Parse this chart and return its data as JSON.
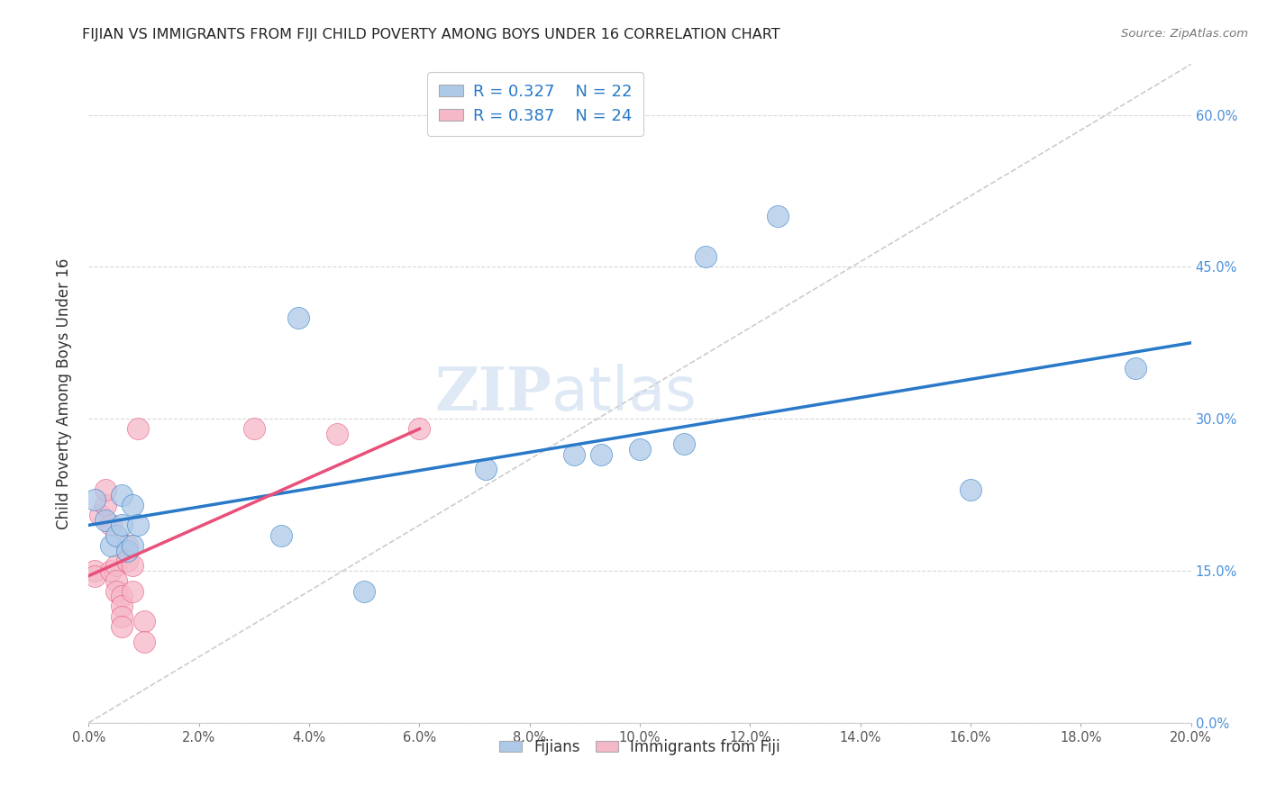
{
  "title": "FIJIAN VS IMMIGRANTS FROM FIJI CHILD POVERTY AMONG BOYS UNDER 16 CORRELATION CHART",
  "source": "Source: ZipAtlas.com",
  "ylabel": "Child Poverty Among Boys Under 16",
  "xlim": [
    0.0,
    0.2
  ],
  "ylim": [
    0.0,
    0.65
  ],
  "x_ticks": [
    0.0,
    0.02,
    0.04,
    0.06,
    0.08,
    0.1,
    0.12,
    0.14,
    0.16,
    0.18,
    0.2
  ],
  "y_ticks": [
    0.0,
    0.15,
    0.3,
    0.45,
    0.6
  ],
  "fijians_R": 0.327,
  "fijians_N": 22,
  "immigrants_R": 0.387,
  "immigrants_N": 24,
  "fijians_color": "#adc9e8",
  "immigrants_color": "#f5b8c8",
  "fijians_line_color": "#2979c8",
  "immigrants_line_color": "#e8507a",
  "diagonal_color": "#cccccc",
  "watermark_zip": "ZIP",
  "watermark_atlas": "atlas",
  "fijians_x": [
    0.001,
    0.003,
    0.004,
    0.005,
    0.006,
    0.006,
    0.007,
    0.008,
    0.008,
    0.009,
    0.035,
    0.038,
    0.05,
    0.072,
    0.088,
    0.093,
    0.1,
    0.108,
    0.112,
    0.125,
    0.16,
    0.19
  ],
  "fijians_y": [
    0.22,
    0.2,
    0.175,
    0.185,
    0.195,
    0.225,
    0.17,
    0.175,
    0.215,
    0.195,
    0.185,
    0.4,
    0.13,
    0.25,
    0.265,
    0.265,
    0.27,
    0.275,
    0.46,
    0.5,
    0.23,
    0.35
  ],
  "immigrants_x": [
    0.001,
    0.001,
    0.002,
    0.003,
    0.003,
    0.004,
    0.004,
    0.005,
    0.005,
    0.005,
    0.006,
    0.006,
    0.006,
    0.006,
    0.007,
    0.007,
    0.008,
    0.008,
    0.009,
    0.01,
    0.01,
    0.03,
    0.045,
    0.06
  ],
  "immigrants_y": [
    0.15,
    0.145,
    0.205,
    0.215,
    0.23,
    0.195,
    0.15,
    0.155,
    0.14,
    0.13,
    0.125,
    0.115,
    0.105,
    0.095,
    0.175,
    0.16,
    0.155,
    0.13,
    0.29,
    0.1,
    0.08,
    0.29,
    0.285,
    0.29
  ],
  "fijians_line_x0": 0.0,
  "fijians_line_x1": 0.2,
  "fijians_line_y0": 0.195,
  "fijians_line_y1": 0.375,
  "immigrants_line_x0": 0.0,
  "immigrants_line_x1": 0.06,
  "immigrants_line_y0": 0.145,
  "immigrants_line_y1": 0.29
}
